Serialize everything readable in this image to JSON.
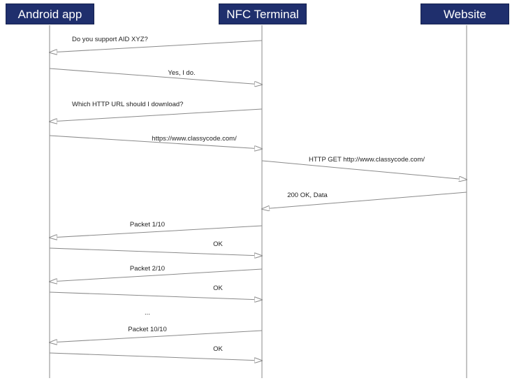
{
  "actors": [
    {
      "id": "android",
      "label": "Android app"
    },
    {
      "id": "nfc",
      "label": "NFC Terminal"
    },
    {
      "id": "web",
      "label": "Website"
    }
  ],
  "messages": [
    {
      "from": "nfc",
      "to": "android",
      "label": "Do you support AID XYZ?"
    },
    {
      "from": "android",
      "to": "nfc",
      "label": "Yes, I do."
    },
    {
      "from": "nfc",
      "to": "android",
      "label": "Which HTTP URL should I download?"
    },
    {
      "from": "android",
      "to": "nfc",
      "label": "https://www.classycode.com/"
    },
    {
      "from": "nfc",
      "to": "web",
      "label": "HTTP GET http://www.classycode.com/"
    },
    {
      "from": "web",
      "to": "nfc",
      "label": "200 OK, Data"
    },
    {
      "from": "nfc",
      "to": "android",
      "label": "Packet 1/10"
    },
    {
      "from": "android",
      "to": "nfc",
      "label": "OK"
    },
    {
      "from": "nfc",
      "to": "android",
      "label": "Packet 2/10"
    },
    {
      "from": "android",
      "to": "nfc",
      "label": "OK"
    },
    {
      "from": "nfc",
      "to": "android",
      "label": "..."
    },
    {
      "from": "nfc",
      "to": "android",
      "label": "Packet 10/10"
    },
    {
      "from": "android",
      "to": "nfc",
      "label": "OK"
    }
  ],
  "colors": {
    "actor_fill": "#1f2f6d",
    "lifeline": "#8a8a8a",
    "arrow": "#8a8a8a"
  }
}
